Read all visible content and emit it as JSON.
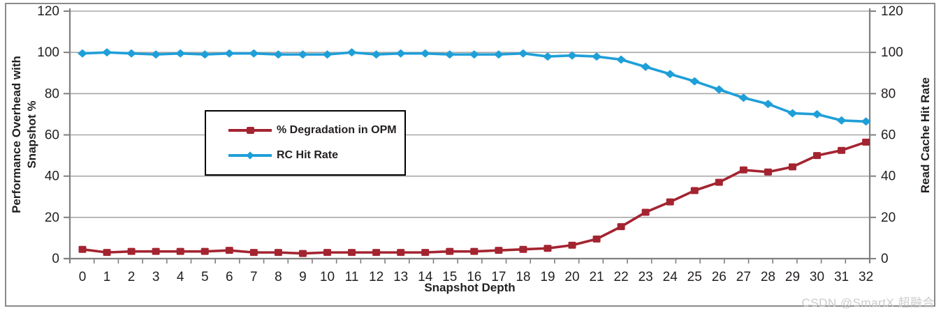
{
  "watermark": "CSDN @SmartX 超融合",
  "colors": {
    "degradation": "#A32430",
    "hit_rate": "#1F9FD8",
    "grid": "#a8a8a8",
    "axis": "#7f7f7f",
    "text": "#231F20",
    "figure_border": "#8a8a8a",
    "legend_border": "#000000",
    "watermark_text": "#cbcbcb"
  },
  "chart_data": {
    "type": "line",
    "title": "",
    "xlabel": "Snapshot Depth",
    "ylabel_left": "Performance Overhead with\nSnapshot %",
    "ylabel_right": "Read Cache Hit Rate",
    "categories": [
      "0",
      "1",
      "2",
      "3",
      "4",
      "5",
      "6",
      "7",
      "8",
      "9",
      "10",
      "11",
      "12",
      "13",
      "14",
      "15",
      "16",
      "17",
      "18",
      "19",
      "20",
      "21",
      "22",
      "23",
      "24",
      "25",
      "26",
      "27",
      "28",
      "29",
      "30",
      "31",
      "32"
    ],
    "y_ticks": [
      0,
      20,
      40,
      60,
      80,
      100,
      120
    ],
    "ylim": [
      0,
      120
    ],
    "grid": true,
    "legend_position": "inside-upper-left",
    "series": [
      {
        "name": "% Degradation in OPM",
        "axis": "left",
        "color": "#A32430",
        "marker": "square",
        "values": [
          4.5,
          3,
          3.5,
          3.5,
          3.5,
          3.5,
          4,
          3,
          3,
          2.5,
          3,
          3,
          3,
          3,
          3,
          3.5,
          3.5,
          4,
          4.5,
          5,
          6.5,
          9.5,
          15.5,
          22.5,
          27.5,
          33,
          37,
          43,
          42,
          44.5,
          50,
          52.5,
          56.5
        ]
      },
      {
        "name": "RC Hit Rate",
        "axis": "right",
        "color": "#1F9FD8",
        "marker": "diamond",
        "values": [
          99.5,
          100,
          99.5,
          99,
          99.5,
          99,
          99.5,
          99.5,
          99,
          99,
          99,
          100,
          99,
          99.5,
          99.5,
          99,
          99,
          99,
          99.5,
          98,
          98.5,
          98,
          96.5,
          93,
          89.5,
          86,
          82,
          78,
          75,
          70.5,
          70,
          67,
          66.5
        ]
      }
    ]
  }
}
